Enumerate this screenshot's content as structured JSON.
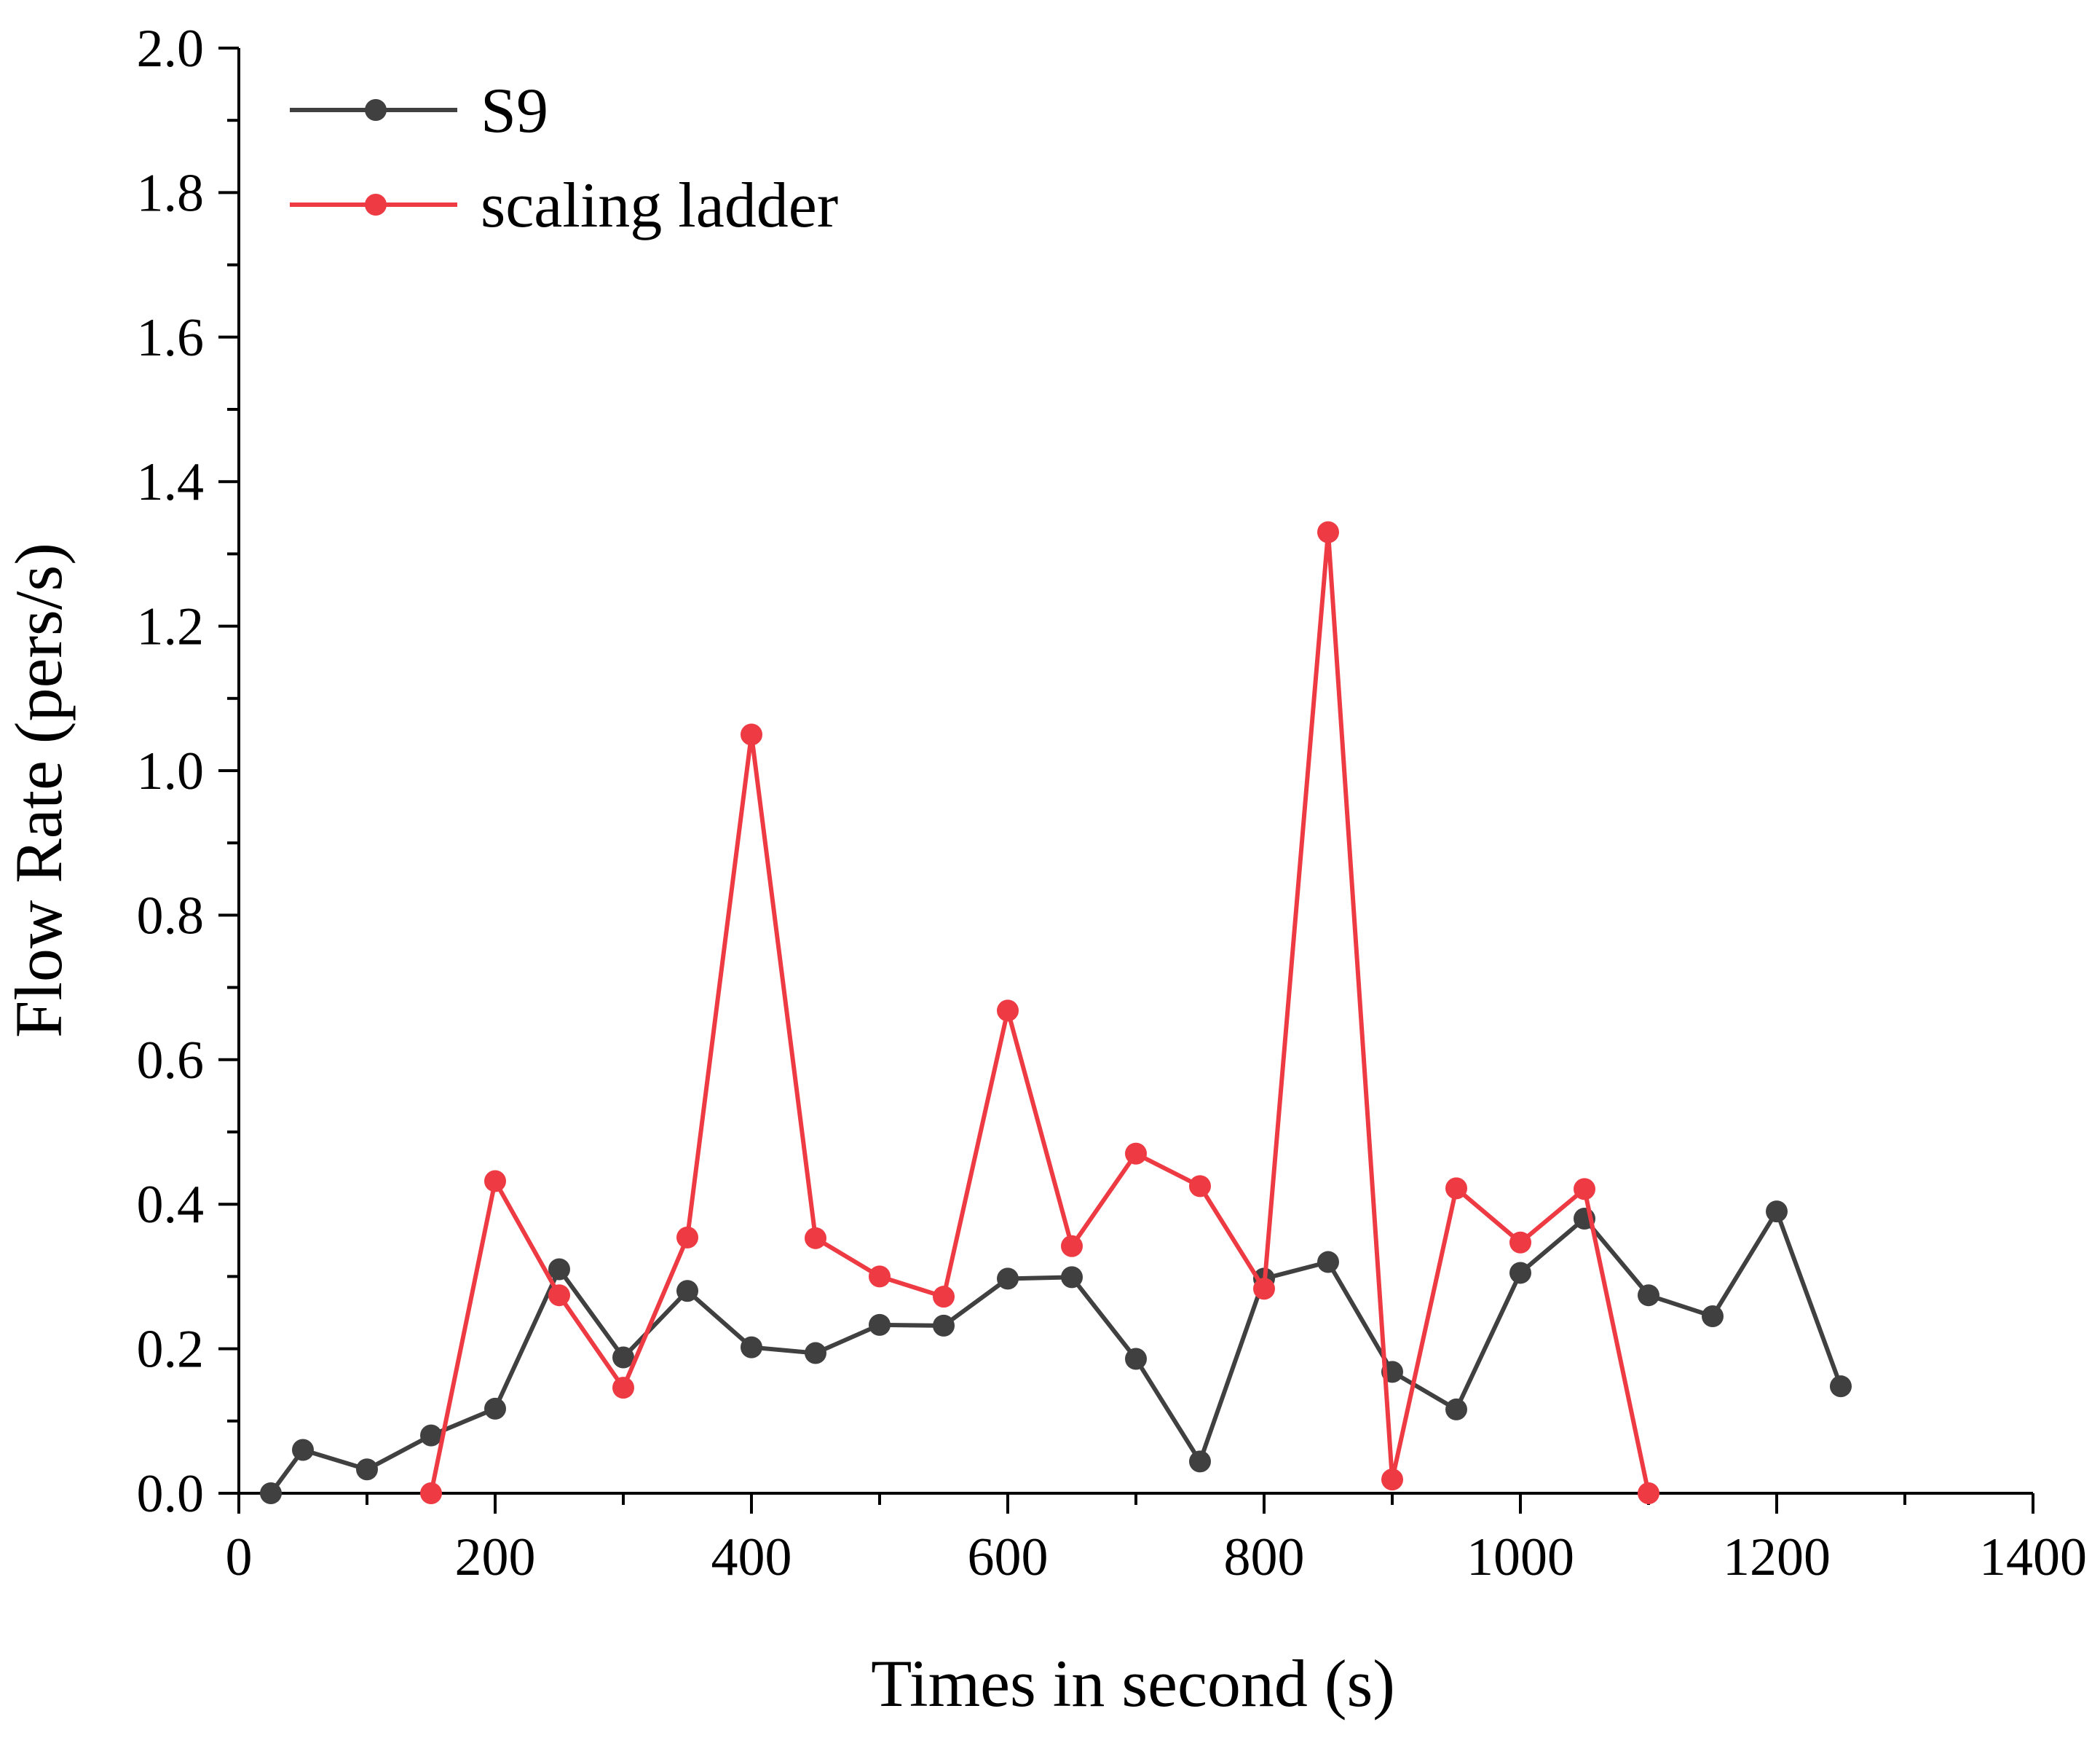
{
  "chart_data": {
    "type": "line",
    "title": "",
    "xlabel": "Times in second (s)",
    "ylabel": "Flow Rate (pers/s)",
    "xlim": [
      0,
      1400
    ],
    "ylim": [
      0.0,
      2.0
    ],
    "x_ticks": [
      0,
      200,
      400,
      600,
      800,
      1000,
      1200,
      1400
    ],
    "x_tick_labels": [
      "0",
      "200",
      "400",
      "600",
      "800",
      "1000",
      "1200",
      "1400"
    ],
    "y_ticks": [
      0.0,
      0.2,
      0.4,
      0.6,
      0.8,
      1.0,
      1.2,
      1.4,
      1.6,
      1.8,
      2.0
    ],
    "y_tick_labels": [
      "0.0",
      "0.2",
      "0.4",
      "0.6",
      "0.8",
      "1.0",
      "1.2",
      "1.4",
      "1.6",
      "1.8",
      "2.0"
    ],
    "grid": false,
    "legend_position": "top-left",
    "series": [
      {
        "name": "S9",
        "color": "#404040",
        "x": [
          25,
          50,
          100,
          150,
          200,
          250,
          300,
          350,
          400,
          450,
          500,
          550,
          600,
          650,
          700,
          750,
          800,
          850,
          900,
          950,
          1000,
          1050,
          1100,
          1150,
          1200,
          1250
        ],
        "y": [
          0.0,
          0.06,
          0.033,
          0.08,
          0.117,
          0.31,
          0.188,
          0.28,
          0.202,
          0.194,
          0.233,
          0.232,
          0.297,
          0.299,
          0.186,
          0.044,
          0.297,
          0.32,
          0.168,
          0.116,
          0.305,
          0.38,
          0.274,
          0.245,
          0.39,
          0.148
        ]
      },
      {
        "name": "scaling ladder",
        "color": "#ee3a42",
        "x": [
          150,
          200,
          250,
          300,
          350,
          400,
          450,
          500,
          550,
          600,
          650,
          700,
          750,
          800,
          850,
          900,
          950,
          1000,
          1050,
          1100
        ],
        "y": [
          0.0,
          0.432,
          0.274,
          0.146,
          0.354,
          1.05,
          0.353,
          0.3,
          0.272,
          0.668,
          0.342,
          0.47,
          0.425,
          0.283,
          1.33,
          0.019,
          0.422,
          0.347,
          0.421,
          0.0
        ]
      }
    ]
  }
}
